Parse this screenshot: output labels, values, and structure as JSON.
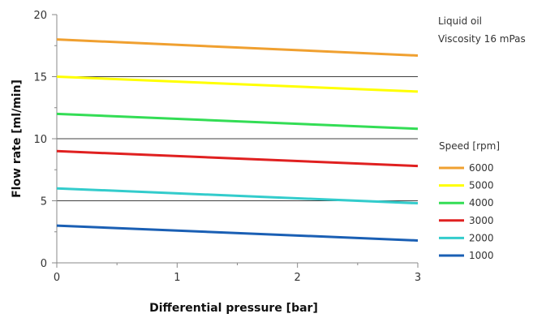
{
  "chart_data": {
    "type": "line",
    "xlabel": "Differential pressure [bar]",
    "ylabel": "Flow rate [ml/min]",
    "xlim": [
      0,
      3
    ],
    "ylim": [
      0,
      20
    ],
    "x_ticks": [
      "0",
      "1",
      "2",
      "3"
    ],
    "y_ticks": [
      "0",
      "5",
      "10",
      "15",
      "20"
    ],
    "grid": "horizontal major lines at 5, 10, 15",
    "annotations": [
      "Liquid oil",
      "Viscosity 16 mPas"
    ],
    "legend_title": "Speed [rpm]",
    "legend_position": "right",
    "series": [
      {
        "name": "6000",
        "color": "#f0a030",
        "x": [
          0,
          3
        ],
        "y": [
          18.0,
          16.7
        ]
      },
      {
        "name": "5000",
        "color": "#ffff00",
        "x": [
          0,
          3
        ],
        "y": [
          15.0,
          13.8
        ]
      },
      {
        "name": "4000",
        "color": "#33dd55",
        "x": [
          0,
          3
        ],
        "y": [
          12.0,
          10.8
        ]
      },
      {
        "name": "3000",
        "color": "#e02020",
        "x": [
          0,
          3
        ],
        "y": [
          9.0,
          7.8
        ]
      },
      {
        "name": "2000",
        "color": "#33cccc",
        "x": [
          0,
          3
        ],
        "y": [
          6.0,
          4.8
        ]
      },
      {
        "name": "1000",
        "color": "#1a5fb4",
        "x": [
          0,
          3
        ],
        "y": [
          3.0,
          1.8
        ]
      }
    ]
  }
}
